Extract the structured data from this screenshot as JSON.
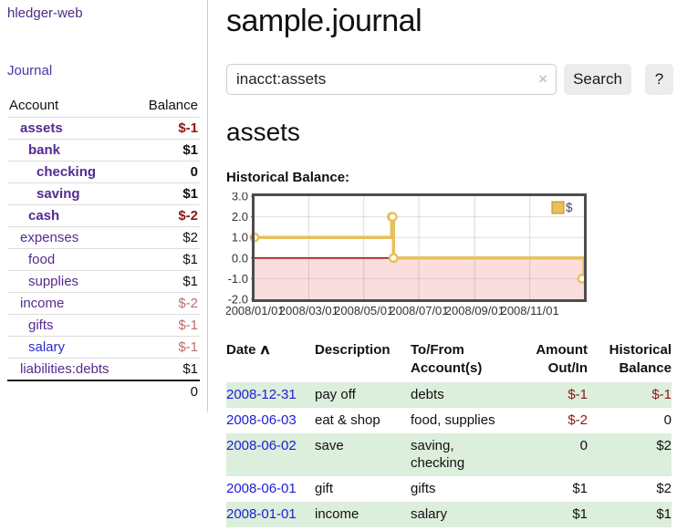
{
  "colors": {
    "link_purple": "#552a90",
    "nav_purple": "#4b2a8e",
    "link_blue": "#1d1dd4",
    "negative_red": "#8c1717",
    "negative_faded": "#b96f6f",
    "row_stripe_green": "#dceedc",
    "chart_gold": "#e7c05a",
    "chart_negative_region": "#fbdddd",
    "chart_zero_line": "#a31515"
  },
  "sidebar": {
    "app_title": "hledger-web",
    "nav_journal": "Journal",
    "accounts_table": {
      "account_header": "Account",
      "balance_header": "Balance",
      "rows": [
        {
          "name": "assets",
          "balance": "$-1"
        },
        {
          "name": "bank",
          "balance": "$1"
        },
        {
          "name": "checking",
          "balance": "0"
        },
        {
          "name": "saving",
          "balance": "$1"
        },
        {
          "name": "cash",
          "balance": "$-2"
        },
        {
          "name": "expenses",
          "balance": "$2"
        },
        {
          "name": "food",
          "balance": "$1"
        },
        {
          "name": "supplies",
          "balance": "$1"
        },
        {
          "name": "income",
          "balance": "$-2"
        },
        {
          "name": "gifts",
          "balance": "$-1"
        },
        {
          "name": "salary",
          "balance": "$-1"
        },
        {
          "name": "liabilities:debts",
          "balance": "$1"
        }
      ],
      "total": "0"
    }
  },
  "main": {
    "title": "sample.journal",
    "search": {
      "value": "inacct:assets",
      "clear_icon": "×",
      "search_button": "Search",
      "help_button": "?"
    },
    "account_heading": "assets",
    "chart_title": "Historical Balance:"
  },
  "chart_data": {
    "type": "line",
    "step": true,
    "title": "Historical Balance",
    "x_range": [
      "2008-01-01",
      "2008-12-31"
    ],
    "ylim": [
      -2.0,
      3.0
    ],
    "yticks": [
      3,
      2,
      1,
      0,
      -1,
      -2
    ],
    "xticks": [
      "2008/01/01",
      "2008/03/01",
      "2008/05/01",
      "2008/07/01",
      "2008/09/01",
      "2008/11/01"
    ],
    "grid": true,
    "legend_position": "top-right",
    "negative_region_below": 0,
    "series": [
      {
        "name": "$",
        "color": "#e7c05a",
        "points": [
          [
            "2008-01-01",
            1
          ],
          [
            "2008-06-01",
            2
          ],
          [
            "2008-06-02",
            2
          ],
          [
            "2008-06-03",
            0
          ],
          [
            "2008-12-31",
            -1
          ]
        ]
      }
    ]
  },
  "register": {
    "headers": {
      "date": "Date",
      "description": "Description",
      "accounts": "To/From Account(s)",
      "amount": "Amount Out/In",
      "balance": "Historical Balance"
    },
    "sort_icon": "∧",
    "rows": [
      {
        "date": "2008-12-31",
        "description": "pay off",
        "accounts": "debts",
        "amount": "$-1",
        "balance": "$-1"
      },
      {
        "date": "2008-06-03",
        "description": "eat & shop",
        "accounts": "food, supplies",
        "amount": "$-2",
        "balance": "0"
      },
      {
        "date": "2008-06-02",
        "description": "save",
        "accounts": "saving, checking",
        "amount": "0",
        "balance": "$2"
      },
      {
        "date": "2008-06-01",
        "description": "gift",
        "accounts": "gifts",
        "amount": "$1",
        "balance": "$2"
      },
      {
        "date": "2008-01-01",
        "description": "income",
        "accounts": "salary",
        "amount": "$1",
        "balance": "$1"
      }
    ]
  }
}
